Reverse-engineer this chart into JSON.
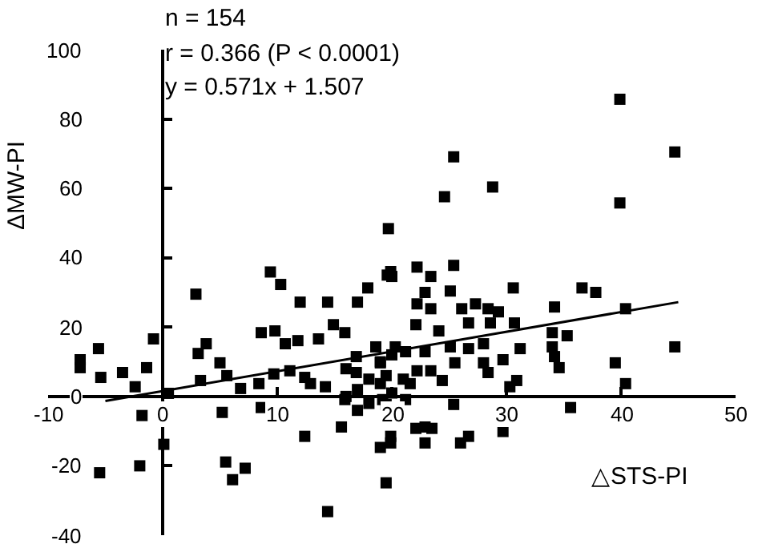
{
  "chart_data": {
    "type": "scatter",
    "xlabel": "△STS-PI",
    "ylabel": "ΔMW-PI",
    "annotations": [
      "n = 154",
      "r = 0.366 (P < 0.0001)",
      "y = 0.571x + 1.507"
    ],
    "xlim": [
      -10,
      50
    ],
    "xticks": [
      -10,
      0,
      10,
      20,
      30,
      40,
      50
    ],
    "ylim": [
      -40,
      100
    ],
    "yticks": [
      -40,
      -20,
      0,
      20,
      40,
      60,
      80,
      100
    ],
    "marker": "square",
    "series": [
      {
        "color": "#000000",
        "x": [
          -7.2,
          -7.2,
          -5.6,
          -5.4,
          -3.5,
          -1.4,
          -2.4,
          -1.8,
          -5.5,
          -2,
          -0.8,
          0.5,
          0.1,
          2.9,
          3.1,
          3.8,
          3.3,
          5,
          5.2,
          5.6,
          5.5,
          6.1,
          7.2,
          6.8,
          8.6,
          8.4,
          9.4,
          10.3,
          8.6,
          9.8,
          10.7,
          11.8,
          12,
          9.7,
          11.1,
          12.4,
          12.4,
          14.4,
          13.6,
          14.9,
          15.9,
          14.4,
          15.6,
          17,
          17.9,
          12.9,
          14.2,
          15.9,
          16.9,
          16.9,
          18.6,
          19,
          19.6,
          19,
          19.5,
          19,
          19.5,
          19.9,
          19.5,
          19.2,
          20,
          22.2,
          23.4,
          25.4,
          22.9,
          25.1,
          22.2,
          23.4,
          22.1,
          24.1,
          26.1,
          27.3,
          28.4,
          29.3,
          26.7,
          28.6,
          30.6,
          30.7,
          34.2,
          36.6,
          37.8,
          40.4,
          44.7,
          39.5,
          40.4,
          34,
          35.3,
          34,
          34.2,
          34.6,
          31.2,
          29.7,
          28,
          28,
          28.4,
          26.7,
          25.1,
          25.5,
          24.4,
          23.4,
          22.2,
          22.9,
          21.2,
          20.3,
          30.3,
          30.9,
          21.6,
          21.2,
          25.4,
          22.1,
          22.9,
          23.5,
          22.9,
          26,
          26.7,
          29.7,
          35.6,
          19.9,
          39.9,
          44.7,
          39.9,
          25.4,
          24.6,
          28.8,
          19.7,
          19.9,
          16,
          17,
          18,
          19,
          20,
          18,
          17,
          20,
          21,
          16
        ],
        "values": [
          10.6,
          8.3,
          13.8,
          5.5,
          6.9,
          8.3,
          2.8,
          -5.5,
          -22,
          -20,
          16.6,
          0.9,
          -13.8,
          29.5,
          12.4,
          15.2,
          4.6,
          9.7,
          -4.6,
          6,
          -18.9,
          -24,
          -20.7,
          2.3,
          -3.2,
          3.7,
          35.9,
          32.3,
          18.4,
          18.9,
          15.2,
          16.1,
          27.2,
          6.5,
          7.4,
          5.5,
          -11.5,
          27.2,
          16.6,
          20.7,
          18.4,
          -33.2,
          -8.8,
          27.2,
          31.3,
          3.7,
          2.8,
          -0.9,
          11.5,
          6.9,
          14.3,
          3.7,
          35,
          9.7,
          -2.3,
          -14.7,
          -24.9,
          -11.5,
          6,
          -0.9,
          34.6,
          37.3,
          34.6,
          37.8,
          30,
          30.4,
          26.7,
          25.3,
          20.7,
          18.9,
          25.3,
          26.7,
          25.3,
          24.4,
          21.2,
          21.2,
          31.3,
          21.2,
          25.8,
          31.3,
          30,
          25.3,
          14.3,
          9.7,
          3.7,
          18.4,
          17.5,
          14.3,
          11.5,
          8.3,
          13.8,
          10.6,
          15.2,
          9.7,
          6.9,
          13.8,
          14.3,
          9.7,
          4.6,
          7.4,
          7.4,
          12.9,
          12.9,
          14.3,
          2.8,
          4.6,
          3.7,
          -0.9,
          -2.3,
          -9.2,
          -8.8,
          -9.2,
          -13.4,
          -13.4,
          -11.5,
          -10.1,
          -3.2,
          -13.4,
          85.7,
          70.5,
          55.8,
          69.1,
          57.6,
          60.4,
          48.4,
          36,
          0,
          2,
          5,
          10,
          12,
          -2,
          -4,
          1,
          5,
          8
        ]
      },
      {
        "type": "line",
        "color": "#000000",
        "marker": "none",
        "line_style": "solid",
        "x": [
          -5,
          45
        ],
        "values": [
          -1.3,
          27.2
        ]
      }
    ]
  }
}
